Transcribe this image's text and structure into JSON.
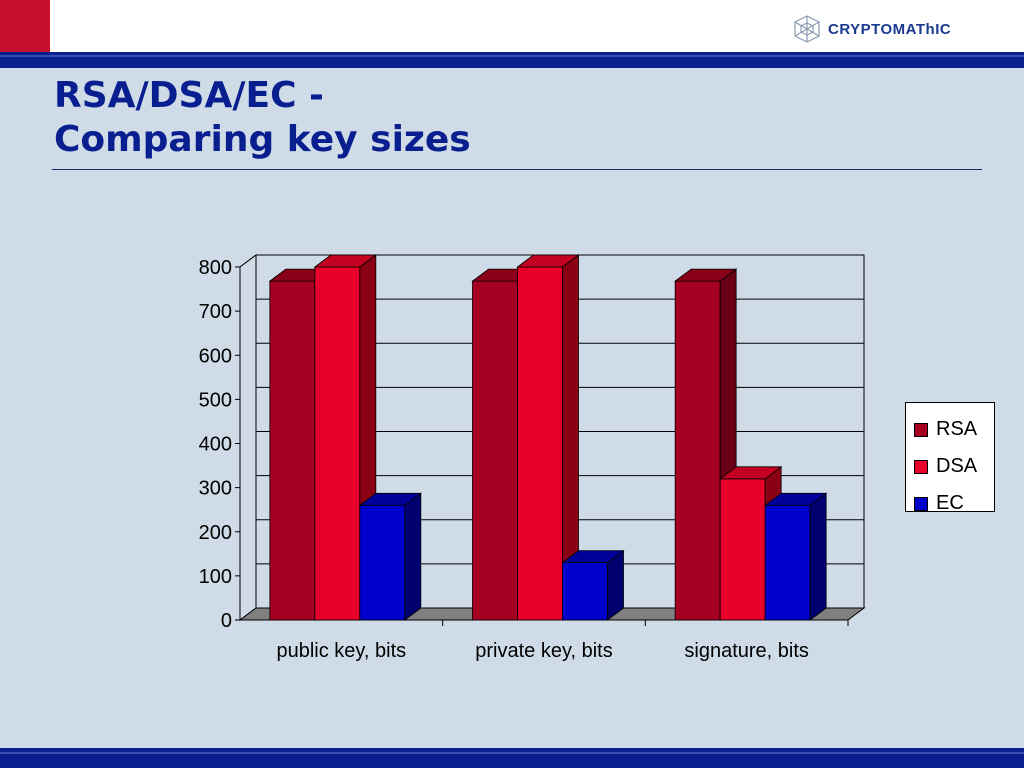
{
  "header": {
    "logo_text": "CRYPTOMAThIC",
    "logo_icon": "cube-lattice-icon",
    "accent_color": "#c8102e",
    "band_color": "#0a1f8f"
  },
  "slide": {
    "title_line1": "RSA/DSA/EC -",
    "title_line2": "Comparing key sizes"
  },
  "chart_data": {
    "type": "bar",
    "style": "3d-clustered",
    "categories": [
      "public key, bits",
      "private key, bits",
      "signature, bits"
    ],
    "series": [
      {
        "name": "RSA",
        "values": [
          768,
          768,
          768
        ],
        "color": "#a50021",
        "side": "#6a0015",
        "top": "#8a0018"
      },
      {
        "name": "DSA",
        "values": [
          800,
          800,
          320
        ],
        "color": "#e8002a",
        "side": "#8a0014",
        "top": "#c40022"
      },
      {
        "name": "EC",
        "values": [
          260,
          130,
          260
        ],
        "color": "#0000cc",
        "side": "#000070",
        "top": "#000099"
      }
    ],
    "ylim": [
      0,
      800
    ],
    "yticks": [
      0,
      100,
      200,
      300,
      400,
      500,
      600,
      700,
      800
    ],
    "grid": true,
    "legend": "right",
    "xlabel": "",
    "ylabel": ""
  }
}
